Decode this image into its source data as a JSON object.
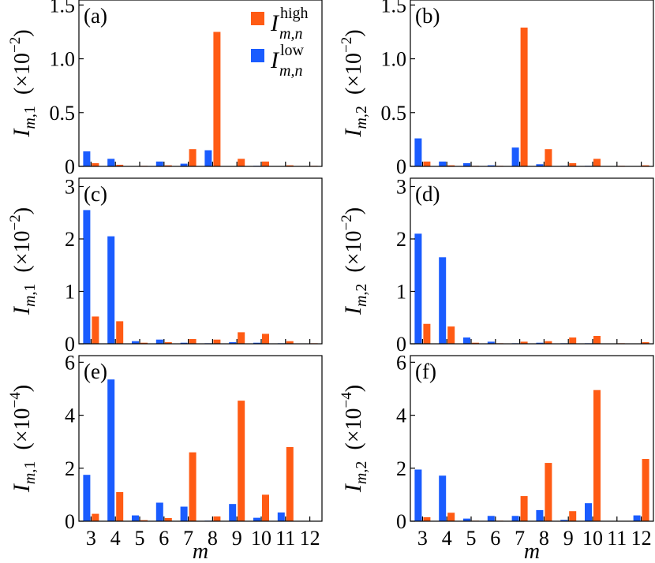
{
  "colors": {
    "high": "#FF5B14",
    "low": "#1A5CFF"
  },
  "legend": {
    "high_sup": "high",
    "low_sup": "low",
    "sub": "m,n",
    "base": "I"
  },
  "xlabel": "m",
  "categories": [
    "3",
    "4",
    "5",
    "6",
    "7",
    "8",
    "9",
    "10",
    "11",
    "12"
  ],
  "chart_data": [
    {
      "type": "bar",
      "panel": "(a)",
      "ylabel_sub": "m,1",
      "scale_exp": "−2",
      "ylim": [
        0,
        1.5
      ],
      "yticks": [
        "0",
        "0.5",
        "1.0",
        "1.5"
      ],
      "ytick_values": [
        0,
        0.5,
        1.0,
        1.5
      ],
      "categories": [
        "3",
        "4",
        "5",
        "6",
        "7",
        "8",
        "9",
        "10",
        "11",
        "12"
      ],
      "series": [
        {
          "key": "low",
          "values": [
            0.14,
            0.07,
            0.0,
            0.045,
            0.025,
            0.15,
            0.0,
            0.005,
            0.0,
            0.0
          ]
        },
        {
          "key": "high",
          "values": [
            0.03,
            0.015,
            0.005,
            0.01,
            0.16,
            1.25,
            0.07,
            0.045,
            0.01,
            0.005
          ]
        }
      ]
    },
    {
      "type": "bar",
      "panel": "(b)",
      "ylabel_sub": "m,2",
      "scale_exp": "−2",
      "ylim": [
        0,
        1.5
      ],
      "yticks": [
        "0",
        "0.5",
        "1.0",
        "1.5"
      ],
      "ytick_values": [
        0,
        0.5,
        1.0,
        1.5
      ],
      "categories": [
        "3",
        "4",
        "5",
        "6",
        "7",
        "8",
        "9",
        "10",
        "11",
        "12"
      ],
      "series": [
        {
          "key": "low",
          "values": [
            0.26,
            0.045,
            0.03,
            0.01,
            0.175,
            0.02,
            0.005,
            0.005,
            0.0,
            0.0
          ]
        },
        {
          "key": "high",
          "values": [
            0.045,
            0.01,
            0.005,
            0.005,
            1.29,
            0.16,
            0.03,
            0.07,
            0.005,
            0.01
          ]
        }
      ]
    },
    {
      "type": "bar",
      "panel": "(c)",
      "ylabel_sub": "m,1",
      "scale_exp": "−2",
      "ylim": [
        0,
        3
      ],
      "yticks": [
        "0",
        "1",
        "2",
        "3"
      ],
      "ytick_values": [
        0,
        1,
        2,
        3
      ],
      "categories": [
        "3",
        "4",
        "5",
        "6",
        "7",
        "8",
        "9",
        "10",
        "11",
        "12"
      ],
      "series": [
        {
          "key": "low",
          "values": [
            2.55,
            2.05,
            0.05,
            0.08,
            0.02,
            0.01,
            0.03,
            0.02,
            0.01,
            0.0
          ]
        },
        {
          "key": "high",
          "values": [
            0.52,
            0.43,
            0.02,
            0.03,
            0.09,
            0.08,
            0.22,
            0.19,
            0.05,
            0.01
          ]
        }
      ]
    },
    {
      "type": "bar",
      "panel": "(d)",
      "ylabel_sub": "m,2",
      "scale_exp": "−2",
      "ylim": [
        0,
        3
      ],
      "yticks": [
        "0",
        "1",
        "2",
        "3"
      ],
      "ytick_values": [
        0,
        1,
        2,
        3
      ],
      "categories": [
        "3",
        "4",
        "5",
        "6",
        "7",
        "8",
        "9",
        "10",
        "11",
        "12"
      ],
      "series": [
        {
          "key": "low",
          "values": [
            2.1,
            1.65,
            0.12,
            0.04,
            0.01,
            0.02,
            0.01,
            0.01,
            0.0,
            0.0
          ]
        },
        {
          "key": "high",
          "values": [
            0.38,
            0.33,
            0.02,
            0.01,
            0.04,
            0.05,
            0.12,
            0.15,
            0.01,
            0.03
          ]
        }
      ]
    },
    {
      "type": "bar",
      "panel": "(e)",
      "ylabel_sub": "m,1",
      "scale_exp": "−4",
      "ylim": [
        0,
        6
      ],
      "yticks": [
        "0",
        "2",
        "4",
        "6"
      ],
      "ytick_values": [
        0,
        2,
        4,
        6
      ],
      "categories": [
        "3",
        "4",
        "5",
        "6",
        "7",
        "8",
        "9",
        "10",
        "11",
        "12"
      ],
      "series": [
        {
          "key": "low",
          "values": [
            1.75,
            5.35,
            0.22,
            0.7,
            0.55,
            0.02,
            0.65,
            0.13,
            0.33,
            0.0
          ]
        },
        {
          "key": "high",
          "values": [
            0.28,
            1.1,
            0.04,
            0.12,
            2.6,
            0.18,
            4.55,
            1.0,
            2.8,
            0.0
          ]
        }
      ]
    },
    {
      "type": "bar",
      "panel": "(f)",
      "ylabel_sub": "m,2",
      "scale_exp": "−4",
      "ylim": [
        0,
        6
      ],
      "yticks": [
        "0",
        "2",
        "4",
        "6"
      ],
      "ytick_values": [
        0,
        2,
        4,
        6
      ],
      "categories": [
        "3",
        "4",
        "5",
        "6",
        "7",
        "8",
        "9",
        "10",
        "11",
        "12"
      ],
      "series": [
        {
          "key": "low",
          "values": [
            1.95,
            1.72,
            0.1,
            0.2,
            0.2,
            0.42,
            0.05,
            0.68,
            0.0,
            0.22
          ]
        },
        {
          "key": "high",
          "values": [
            0.15,
            0.32,
            0.02,
            0.02,
            0.95,
            2.2,
            0.38,
            4.95,
            0.0,
            2.35
          ]
        }
      ]
    }
  ]
}
